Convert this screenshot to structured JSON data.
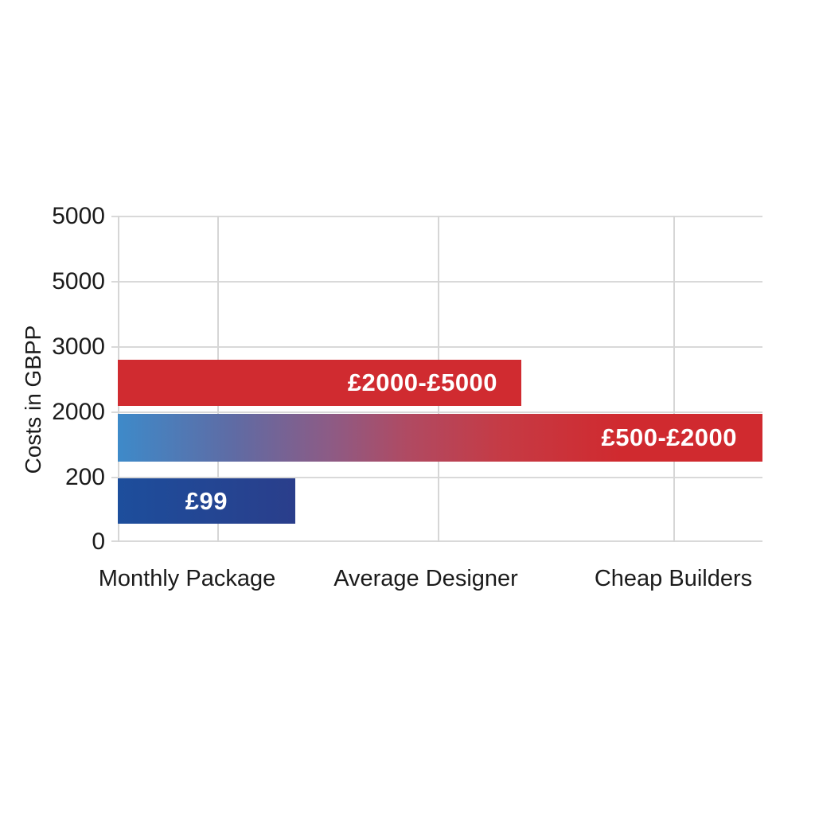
{
  "chart_data": {
    "type": "bar",
    "orientation": "horizontal",
    "title": "",
    "ylabel": "Costs in GBPP",
    "xlabel": "",
    "grid": true,
    "background_color": "#ffffff",
    "gridline_color": "#d9d9d9",
    "text_color": "#1b1b1b",
    "y_tick_labels": [
      "5000",
      "5000",
      "3000",
      "2000",
      "200",
      "0"
    ],
    "x_categories": [
      "Monthly Package",
      "Average Designer",
      "Cheap Builders"
    ],
    "bars": [
      {
        "label": "£2000-£5000",
        "value_low": 2000,
        "value_high": 5000,
        "length_pct": 62.6,
        "width_style": "width:62.6%",
        "color": "#d02b30",
        "label_position": "right-inside"
      },
      {
        "label": "£500-£2000",
        "value_low": 500,
        "value_high": 2000,
        "length_pct": 100,
        "width_style": "width:100%",
        "color_gradient_start": "#3e8ac9",
        "color_gradient_end": "#d02a2f",
        "label_position": "right-inside"
      },
      {
        "label": "£99",
        "value_low": 99,
        "value_high": 99,
        "length_pct": 27.5,
        "width_style": "width:27.5%",
        "color": "#1f4892",
        "label_position": "center-inside"
      }
    ]
  }
}
